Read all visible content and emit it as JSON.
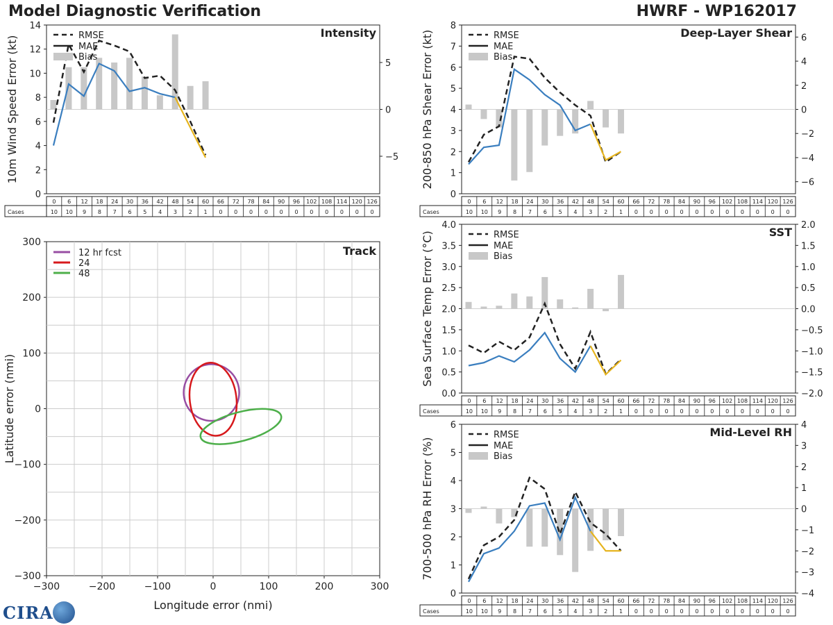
{
  "header": {
    "title": "Model Diagnostic Verification",
    "model": "HWRF - WP162017"
  },
  "logo": {
    "text": "CIRA"
  },
  "colors": {
    "rmse": "#222222",
    "mae": "#3a7ebf",
    "mae_late": "#e6b41e",
    "bias": "#c8c8c8",
    "ellipse_12": "#984ea3",
    "ellipse_24": "#d7191c",
    "ellipse_48": "#4daf4a"
  },
  "cases_label": "Cases",
  "legend": {
    "rmse": "RMSE",
    "mae": "MAE",
    "bias": "Bias"
  },
  "chart_data": [
    {
      "id": "intensity",
      "type": "line",
      "title": "Intensity",
      "ylabel": "10m Wind Speed Error (kt)",
      "ylim": [
        0,
        14
      ],
      "yticks": [
        "0",
        "2",
        "4",
        "6",
        "8",
        "10",
        "12",
        "14"
      ],
      "y2lim": [
        -9,
        9
      ],
      "y2ticks": [
        "−5",
        "0",
        "5"
      ],
      "x": [
        0,
        6,
        12,
        18,
        24,
        30,
        36,
        42,
        48,
        54,
        60
      ],
      "rmse": [
        5.9,
        12.4,
        10.1,
        12.7,
        12.3,
        11.8,
        9.6,
        9.8,
        8.6,
        6.0,
        3.2
      ],
      "mae": [
        4.0,
        9.1,
        8.1,
        10.8,
        10.2,
        8.5,
        8.8,
        8.3,
        8.0,
        5.5,
        3.0
      ],
      "bias": [
        1.0,
        4.5,
        4.5,
        5.5,
        5.0,
        5.5,
        3.5,
        1.5,
        8.0,
        2.5,
        3.0
      ],
      "case_hours": [
        "0",
        "6",
        "12",
        "18",
        "24",
        "30",
        "36",
        "42",
        "48",
        "54",
        "60",
        "66",
        "72",
        "78",
        "84",
        "90",
        "96",
        "102",
        "108",
        "114",
        "120",
        "126"
      ],
      "cases": [
        "10",
        "10",
        "9",
        "8",
        "7",
        "6",
        "5",
        "4",
        "3",
        "2",
        "1",
        "0",
        "0",
        "0",
        "0",
        "0",
        "0",
        "0",
        "0",
        "0",
        "0",
        "0"
      ]
    },
    {
      "id": "shear",
      "type": "line",
      "title": "Deep-Layer Shear",
      "ylabel": "200-850 hPa Shear Error (kt)",
      "ylim": [
        0,
        8
      ],
      "yticks": [
        "0",
        "1",
        "2",
        "3",
        "4",
        "5",
        "6",
        "7",
        "8"
      ],
      "y2lim": [
        -7,
        7
      ],
      "y2ticks": [
        "−6",
        "−4",
        "−2",
        "0",
        "2",
        "4",
        "6"
      ],
      "x": [
        0,
        6,
        12,
        18,
        24,
        30,
        36,
        42,
        48,
        54,
        60
      ],
      "rmse": [
        1.5,
        2.8,
        3.2,
        6.5,
        6.4,
        5.5,
        4.8,
        4.2,
        3.7,
        1.5,
        2.0
      ],
      "mae": [
        1.4,
        2.2,
        2.3,
        5.9,
        5.4,
        4.7,
        4.2,
        3.0,
        3.3,
        1.6,
        2.0
      ],
      "bias": [
        0.4,
        -0.8,
        -1.5,
        -5.9,
        -5.2,
        -3.0,
        -2.2,
        -2.0,
        0.7,
        -1.5,
        -2.0
      ],
      "case_hours": [
        "0",
        "6",
        "12",
        "18",
        "24",
        "30",
        "36",
        "42",
        "48",
        "54",
        "60",
        "66",
        "72",
        "78",
        "84",
        "90",
        "96",
        "102",
        "108",
        "114",
        "120",
        "126"
      ],
      "cases": [
        "10",
        "10",
        "9",
        "8",
        "7",
        "6",
        "5",
        "4",
        "3",
        "2",
        "1",
        "0",
        "0",
        "0",
        "0",
        "0",
        "0",
        "0",
        "0",
        "0",
        "0",
        "0"
      ]
    },
    {
      "id": "sst",
      "type": "line",
      "title": "SST",
      "ylabel": "Sea Surface Temp Error (°C)",
      "ylim": [
        0,
        4
      ],
      "yticks": [
        "0.0",
        "0.5",
        "1.0",
        "1.5",
        "2.0",
        "2.5",
        "3.0",
        "3.5",
        "4.0"
      ],
      "y2lim": [
        -2,
        2
      ],
      "y2ticks": [
        "−2.0",
        "−1.5",
        "−1.0",
        "−0.5",
        "0.0",
        "0.5",
        "1.0",
        "1.5",
        "2.0"
      ],
      "x": [
        0,
        6,
        12,
        18,
        24,
        30,
        36,
        42,
        48,
        54,
        60
      ],
      "rmse": [
        1.13,
        0.95,
        1.22,
        1.02,
        1.32,
        2.12,
        1.16,
        0.58,
        1.45,
        0.45,
        0.8
      ],
      "mae": [
        0.65,
        0.72,
        0.88,
        0.74,
        1.02,
        1.43,
        0.82,
        0.5,
        1.12,
        0.44,
        0.78
      ],
      "bias": [
        0.16,
        0.05,
        0.07,
        0.36,
        0.29,
        0.75,
        0.22,
        0.03,
        0.47,
        -0.06,
        0.8
      ],
      "case_hours": [
        "0",
        "6",
        "12",
        "18",
        "24",
        "30",
        "36",
        "42",
        "48",
        "54",
        "60",
        "66",
        "72",
        "78",
        "84",
        "90",
        "96",
        "102",
        "108",
        "114",
        "120",
        "126"
      ],
      "cases": [
        "10",
        "10",
        "9",
        "8",
        "7",
        "6",
        "5",
        "4",
        "3",
        "2",
        "1",
        "0",
        "0",
        "0",
        "0",
        "0",
        "0",
        "0",
        "0",
        "0",
        "0",
        "0"
      ]
    },
    {
      "id": "rh",
      "type": "line",
      "title": "Mid-Level RH",
      "ylabel": "700-500 hPa RH Error (%)",
      "ylim": [
        0,
        6
      ],
      "yticks": [
        "0",
        "1",
        "2",
        "3",
        "4",
        "5",
        "6"
      ],
      "y2lim": [
        -4,
        4
      ],
      "y2ticks": [
        "−4",
        "−3",
        "−2",
        "−1",
        "0",
        "1",
        "2",
        "3",
        "4"
      ],
      "x": [
        0,
        6,
        12,
        18,
        24,
        30,
        36,
        42,
        48,
        54,
        60
      ],
      "rmse": [
        0.5,
        1.7,
        2.0,
        2.6,
        4.1,
        3.7,
        2.1,
        3.6,
        2.5,
        2.1,
        1.5
      ],
      "mae": [
        0.4,
        1.4,
        1.6,
        2.2,
        3.1,
        3.2,
        1.9,
        3.4,
        2.2,
        1.5,
        1.5
      ],
      "bias": [
        -0.2,
        0.1,
        -0.7,
        -0.4,
        -1.8,
        -1.8,
        -2.2,
        -3.0,
        -2.0,
        -1.5,
        -1.3
      ],
      "case_hours": [
        "0",
        "6",
        "12",
        "18",
        "24",
        "30",
        "36",
        "42",
        "48",
        "54",
        "60",
        "66",
        "72",
        "78",
        "84",
        "90",
        "96",
        "102",
        "108",
        "114",
        "120",
        "126"
      ],
      "cases": [
        "10",
        "10",
        "9",
        "8",
        "7",
        "6",
        "5",
        "4",
        "3",
        "2",
        "1",
        "0",
        "0",
        "0",
        "0",
        "0",
        "0",
        "0",
        "0",
        "0",
        "0",
        "0"
      ]
    },
    {
      "id": "track",
      "type": "scatter",
      "title": "Track",
      "xlabel": "Longitude error (nmi)",
      "ylabel": "Latitude error (nmi)",
      "xlim": [
        -300,
        300
      ],
      "ylim": [
        -300,
        300
      ],
      "xticks": [
        "−300",
        "−200",
        "−100",
        "0",
        "100",
        "200",
        "300"
      ],
      "yticks": [
        "−300",
        "−200",
        "−100",
        "0",
        "100",
        "200",
        "300"
      ],
      "ellipses": [
        {
          "label": "12 hr fcst",
          "cx": -3,
          "cy": 29,
          "rx": 50,
          "ry": 51,
          "rot": 0
        },
        {
          "label": "24",
          "cx": 0,
          "cy": 17,
          "rx": 42,
          "ry": 66,
          "rot": -7
        },
        {
          "label": "48",
          "cx": 50,
          "cy": -32,
          "rx": 75,
          "ry": 26,
          "rot": -15
        }
      ]
    }
  ]
}
